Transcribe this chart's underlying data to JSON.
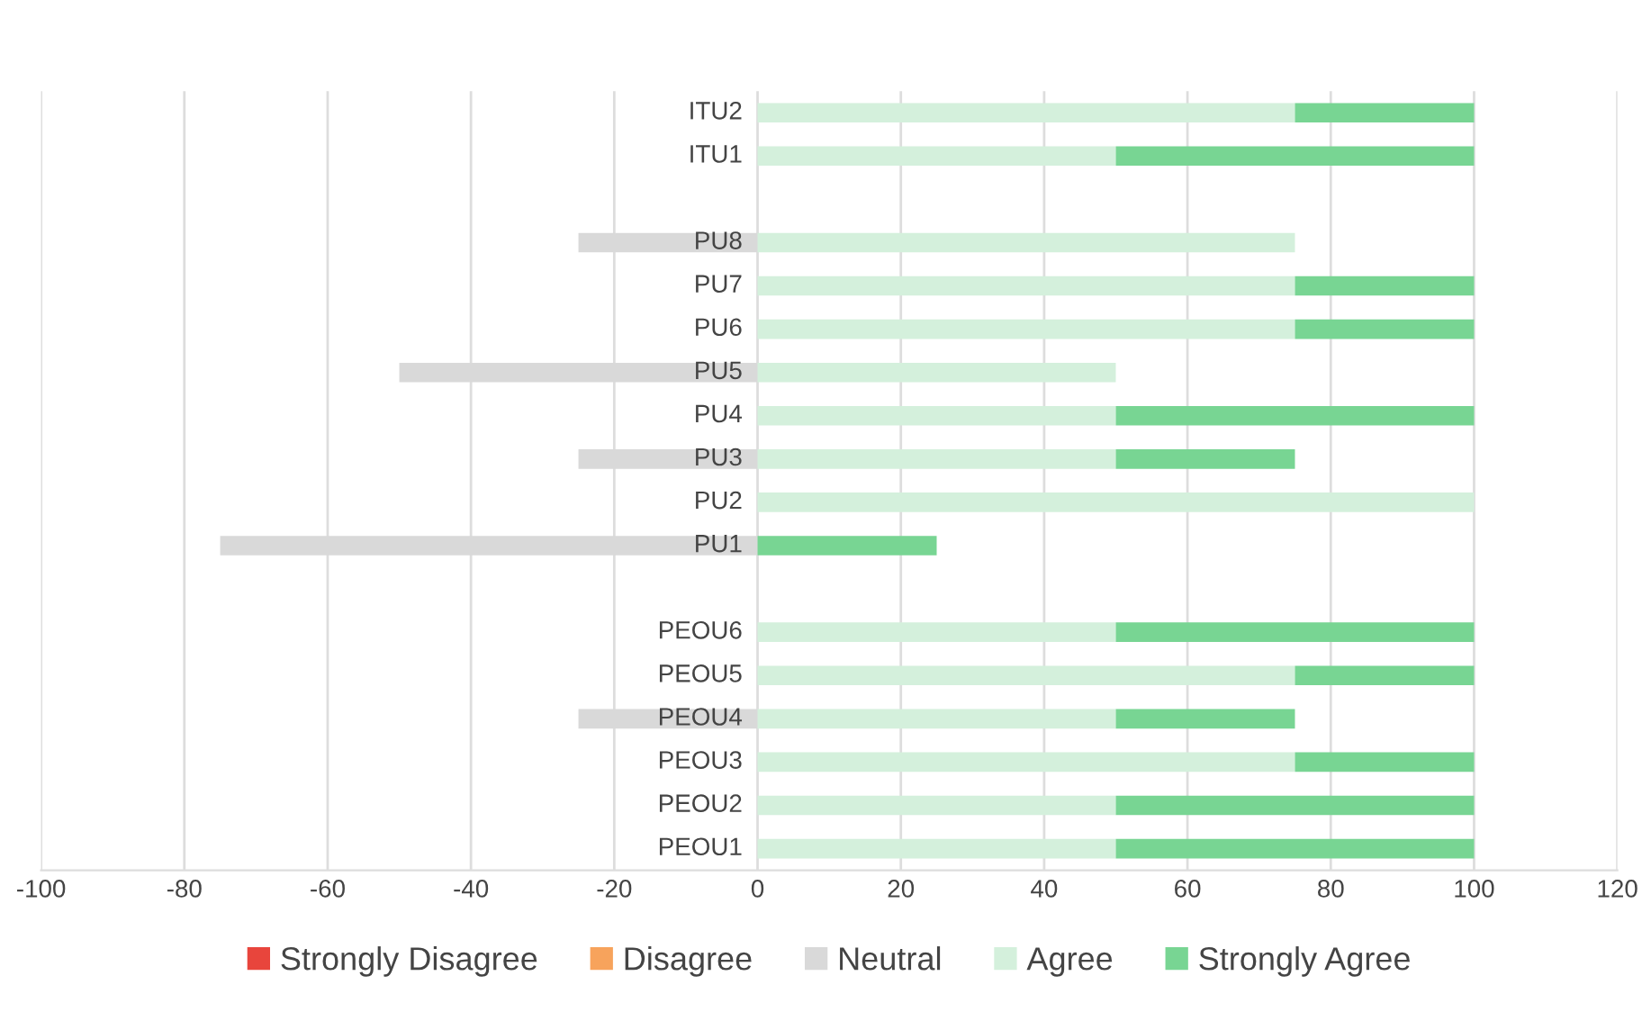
{
  "chart_data": {
    "type": "bar",
    "orientation": "horizontal",
    "stacked": true,
    "categories": [
      "ITU2",
      "ITU1",
      null,
      "PU8",
      "PU7",
      "PU6",
      "PU5",
      "PU4",
      "PU3",
      "PU2",
      "PU1",
      null,
      "PEOU6",
      "PEOU5",
      "PEOU4",
      "PEOU3",
      "PEOU2",
      "PEOU1"
    ],
    "series": [
      {
        "name": "Strongly Disagree",
        "color": "#e8453c",
        "values": [
          null,
          null,
          null,
          null,
          null,
          null,
          null,
          null,
          null,
          null,
          null,
          null,
          null,
          null,
          null,
          null,
          null,
          null
        ]
      },
      {
        "name": "Disagree",
        "color": "#f7a35c",
        "values": [
          null,
          null,
          null,
          null,
          null,
          null,
          null,
          null,
          null,
          null,
          null,
          null,
          null,
          null,
          null,
          null,
          null,
          null
        ]
      },
      {
        "name": "Neutral",
        "color": "#d9d9d9",
        "values": [
          null,
          null,
          null,
          -25,
          null,
          null,
          -50,
          null,
          -25,
          null,
          -75,
          null,
          null,
          null,
          -25,
          null,
          null,
          null
        ]
      },
      {
        "name": "Agree",
        "color": "#d4f0dc",
        "values": [
          75,
          50,
          null,
          75,
          75,
          75,
          50,
          50,
          50,
          100,
          null,
          null,
          50,
          75,
          50,
          75,
          50,
          50
        ]
      },
      {
        "name": "Strongly Agree",
        "color": "#78d593",
        "values": [
          25,
          50,
          null,
          null,
          25,
          25,
          null,
          50,
          25,
          null,
          25,
          null,
          50,
          25,
          25,
          25,
          50,
          50
        ]
      }
    ],
    "xlim": [
      -100,
      120
    ],
    "xticks": [
      -100,
      -80,
      -60,
      -40,
      -20,
      0,
      20,
      40,
      60,
      80,
      100,
      120
    ],
    "grid": "x",
    "legend": "bottom"
  }
}
